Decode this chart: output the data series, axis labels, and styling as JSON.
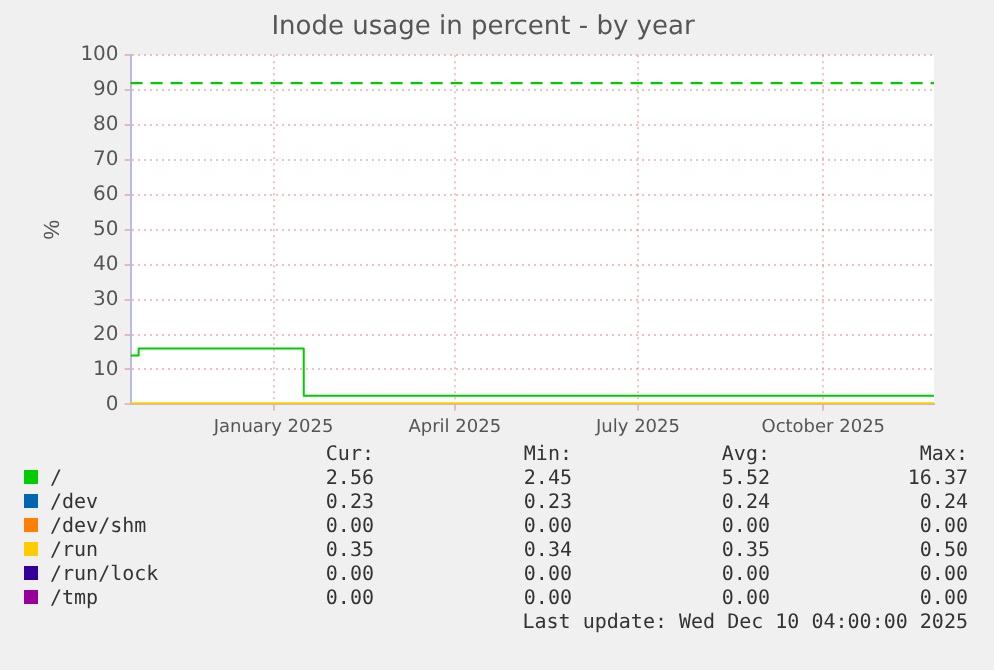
{
  "chart_data": {
    "type": "step",
    "title": "Inode usage in percent - by year",
    "ylabel": "%",
    "xlim": [
      "2024-11-06",
      "2025-12-10"
    ],
    "xticks": [
      {
        "value": "2025-01-16",
        "label": "January 2025"
      },
      {
        "value": "2025-04-16",
        "label": "April 2025"
      },
      {
        "value": "2025-07-16",
        "label": "July 2025"
      },
      {
        "value": "2025-10-16",
        "label": "October 2025"
      }
    ],
    "ylim": [
      0,
      100
    ],
    "yticks": [
      0,
      10,
      20,
      30,
      40,
      50,
      60,
      70,
      80,
      90,
      100
    ],
    "grid": true,
    "legend": "bottom",
    "series": [
      {
        "name": "/",
        "color": "#00cc00",
        "x": [
          "2024-11-06",
          "2024-11-10",
          "2025-01-31",
          "2025-12-10"
        ],
        "values": [
          14,
          16,
          2.5,
          2.5
        ]
      },
      {
        "name": "/dev",
        "color": "#0066b3",
        "values": [
          null,
          null
        ]
      },
      {
        "name": "/dev/shm",
        "color": "#ff8000",
        "values": [
          null,
          null
        ]
      },
      {
        "name": "/run",
        "color": "#ffcc00",
        "x": [
          "2024-11-06",
          "2025-12-10"
        ],
        "values": [
          0.3,
          0.3
        ]
      },
      {
        "name": "/run/lock",
        "color": "#330099",
        "values": [
          null,
          null
        ]
      },
      {
        "name": "/tmp",
        "color": "#990099",
        "values": [
          null,
          null
        ]
      }
    ],
    "ref_lines": [
      {
        "axis": "y",
        "value": 92,
        "color": "#00cc00",
        "line_style": "dashed"
      }
    ],
    "annotations": [
      "Cur:",
      "Min:",
      "Avg:",
      "Max:",
      "2.56",
      "2.45",
      "5.52",
      "16.37",
      "0.23",
      "0.23",
      "0.24",
      "0.24",
      "0.00",
      "0.00",
      "0.00",
      "0.00",
      "0.35",
      "0.34",
      "0.35",
      "0.50",
      "0.00",
      "0.00",
      "0.00",
      "0.00",
      "0.00",
      "0.00",
      "0.00",
      "0.00",
      "Last update: Wed Dec 10 04:00:00 2025"
    ]
  }
}
